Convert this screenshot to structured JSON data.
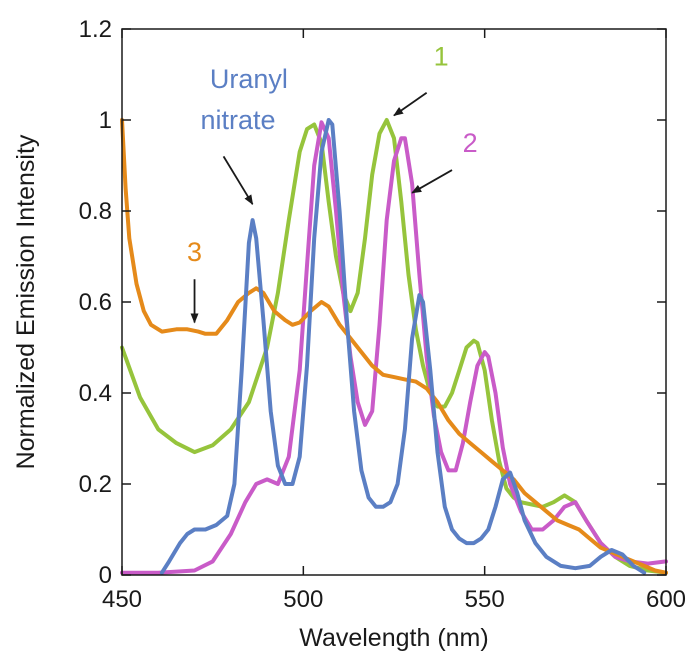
{
  "chart_data": {
    "type": "line",
    "title": "",
    "xlabel": "Wavelength (nm)",
    "ylabel": "Normalized Emission Intensity",
    "xlim": [
      450,
      600
    ],
    "ylim": [
      0,
      1.2
    ],
    "x_ticks": [
      450,
      500,
      550,
      600
    ],
    "y_ticks": [
      0,
      0.2,
      0.4,
      0.6,
      0.8,
      1,
      1.2
    ],
    "x_tick_labels": [
      "450",
      "500",
      "550",
      "600"
    ],
    "y_tick_labels": [
      "0",
      "0.2",
      "0.4",
      "0.6",
      "0.8",
      "1",
      "1.2"
    ],
    "grid": false,
    "legend": "none",
    "series": [
      {
        "name": "1",
        "color": "#96c43c",
        "points": [
          [
            450,
            0.5
          ],
          [
            455,
            0.39
          ],
          [
            460,
            0.32
          ],
          [
            465,
            0.29
          ],
          [
            470,
            0.27
          ],
          [
            475,
            0.285
          ],
          [
            480,
            0.32
          ],
          [
            485,
            0.38
          ],
          [
            490,
            0.5
          ],
          [
            493,
            0.62
          ],
          [
            496,
            0.78
          ],
          [
            499,
            0.93
          ],
          [
            501,
            0.98
          ],
          [
            503,
            0.99
          ],
          [
            505,
            0.95
          ],
          [
            507,
            0.82
          ],
          [
            509,
            0.7
          ],
          [
            511,
            0.62
          ],
          [
            513,
            0.58
          ],
          [
            515,
            0.62
          ],
          [
            517,
            0.74
          ],
          [
            519,
            0.88
          ],
          [
            521,
            0.97
          ],
          [
            523,
            1.0
          ],
          [
            525,
            0.96
          ],
          [
            527,
            0.82
          ],
          [
            529,
            0.66
          ],
          [
            531,
            0.54
          ],
          [
            533,
            0.46
          ],
          [
            535,
            0.4
          ],
          [
            537,
            0.37
          ],
          [
            539,
            0.37
          ],
          [
            541,
            0.4
          ],
          [
            543,
            0.45
          ],
          [
            545,
            0.5
          ],
          [
            547,
            0.515
          ],
          [
            548,
            0.51
          ],
          [
            550,
            0.45
          ],
          [
            552,
            0.34
          ],
          [
            554,
            0.25
          ],
          [
            556,
            0.19
          ],
          [
            558,
            0.17
          ],
          [
            560,
            0.16
          ],
          [
            563,
            0.155
          ],
          [
            566,
            0.15
          ],
          [
            569,
            0.16
          ],
          [
            572,
            0.175
          ],
          [
            575,
            0.16
          ],
          [
            578,
            0.12
          ],
          [
            582,
            0.07
          ],
          [
            586,
            0.04
          ],
          [
            590,
            0.02
          ],
          [
            595,
            0.01
          ],
          [
            600,
            0.005
          ]
        ]
      },
      {
        "name": "2",
        "color": "#c95bc8",
        "points": [
          [
            450,
            0.005
          ],
          [
            460,
            0.005
          ],
          [
            470,
            0.01
          ],
          [
            475,
            0.03
          ],
          [
            480,
            0.09
          ],
          [
            484,
            0.16
          ],
          [
            487,
            0.2
          ],
          [
            490,
            0.21
          ],
          [
            493,
            0.2
          ],
          [
            496,
            0.26
          ],
          [
            499,
            0.45
          ],
          [
            501,
            0.68
          ],
          [
            503,
            0.9
          ],
          [
            505,
            0.995
          ],
          [
            507,
            0.96
          ],
          [
            509,
            0.8
          ],
          [
            511,
            0.62
          ],
          [
            513,
            0.48
          ],
          [
            515,
            0.38
          ],
          [
            517,
            0.33
          ],
          [
            519,
            0.36
          ],
          [
            521,
            0.55
          ],
          [
            523,
            0.78
          ],
          [
            525,
            0.91
          ],
          [
            527,
            0.96
          ],
          [
            528,
            0.96
          ],
          [
            530,
            0.86
          ],
          [
            532,
            0.66
          ],
          [
            534,
            0.48
          ],
          [
            536,
            0.35
          ],
          [
            538,
            0.27
          ],
          [
            540,
            0.23
          ],
          [
            542,
            0.23
          ],
          [
            544,
            0.29
          ],
          [
            546,
            0.38
          ],
          [
            548,
            0.46
          ],
          [
            550,
            0.49
          ],
          [
            551,
            0.48
          ],
          [
            553,
            0.4
          ],
          [
            555,
            0.28
          ],
          [
            557,
            0.2
          ],
          [
            560,
            0.14
          ],
          [
            563,
            0.1
          ],
          [
            566,
            0.1
          ],
          [
            569,
            0.12
          ],
          [
            572,
            0.15
          ],
          [
            575,
            0.16
          ],
          [
            578,
            0.12
          ],
          [
            582,
            0.07
          ],
          [
            586,
            0.04
          ],
          [
            590,
            0.03
          ],
          [
            595,
            0.025
          ],
          [
            600,
            0.03
          ]
        ]
      },
      {
        "name": "3",
        "color": "#e58a1a",
        "points": [
          [
            450,
            1.0
          ],
          [
            451,
            0.85
          ],
          [
            452,
            0.74
          ],
          [
            454,
            0.64
          ],
          [
            456,
            0.58
          ],
          [
            458,
            0.55
          ],
          [
            461,
            0.535
          ],
          [
            465,
            0.54
          ],
          [
            468,
            0.54
          ],
          [
            471,
            0.535
          ],
          [
            473,
            0.53
          ],
          [
            476,
            0.53
          ],
          [
            479,
            0.56
          ],
          [
            482,
            0.6
          ],
          [
            485,
            0.62
          ],
          [
            487,
            0.63
          ],
          [
            489,
            0.62
          ],
          [
            492,
            0.58
          ],
          [
            495,
            0.56
          ],
          [
            497,
            0.55
          ],
          [
            499,
            0.555
          ],
          [
            502,
            0.58
          ],
          [
            505,
            0.6
          ],
          [
            507,
            0.59
          ],
          [
            510,
            0.55
          ],
          [
            513,
            0.52
          ],
          [
            516,
            0.49
          ],
          [
            519,
            0.46
          ],
          [
            522,
            0.44
          ],
          [
            525,
            0.435
          ],
          [
            528,
            0.43
          ],
          [
            531,
            0.425
          ],
          [
            534,
            0.41
          ],
          [
            537,
            0.38
          ],
          [
            540,
            0.34
          ],
          [
            543,
            0.31
          ],
          [
            546,
            0.29
          ],
          [
            549,
            0.27
          ],
          [
            552,
            0.25
          ],
          [
            555,
            0.23
          ],
          [
            558,
            0.21
          ],
          [
            561,
            0.18
          ],
          [
            564,
            0.16
          ],
          [
            567,
            0.14
          ],
          [
            570,
            0.12
          ],
          [
            573,
            0.11
          ],
          [
            576,
            0.1
          ],
          [
            579,
            0.08
          ],
          [
            582,
            0.06
          ],
          [
            585,
            0.05
          ],
          [
            588,
            0.04
          ],
          [
            591,
            0.03
          ],
          [
            594,
            0.02
          ],
          [
            597,
            0.01
          ],
          [
            600,
            0.005
          ]
        ]
      },
      {
        "name": "Uranyl nitrate",
        "color": "#5b7fc4",
        "points": [
          [
            461,
            0.005
          ],
          [
            463,
            0.03
          ],
          [
            466,
            0.07
          ],
          [
            468,
            0.09
          ],
          [
            470,
            0.1
          ],
          [
            473,
            0.1
          ],
          [
            476,
            0.11
          ],
          [
            479,
            0.13
          ],
          [
            481,
            0.2
          ],
          [
            483,
            0.45
          ],
          [
            485,
            0.73
          ],
          [
            486,
            0.78
          ],
          [
            487,
            0.74
          ],
          [
            489,
            0.56
          ],
          [
            491,
            0.36
          ],
          [
            493,
            0.24
          ],
          [
            495,
            0.2
          ],
          [
            497,
            0.2
          ],
          [
            499,
            0.26
          ],
          [
            501,
            0.46
          ],
          [
            503,
            0.74
          ],
          [
            505,
            0.93
          ],
          [
            507,
            1.0
          ],
          [
            508,
            0.99
          ],
          [
            510,
            0.8
          ],
          [
            512,
            0.56
          ],
          [
            514,
            0.36
          ],
          [
            516,
            0.23
          ],
          [
            518,
            0.17
          ],
          [
            520,
            0.15
          ],
          [
            522,
            0.15
          ],
          [
            524,
            0.16
          ],
          [
            526,
            0.2
          ],
          [
            528,
            0.32
          ],
          [
            530,
            0.52
          ],
          [
            532,
            0.615
          ],
          [
            533,
            0.6
          ],
          [
            535,
            0.45
          ],
          [
            537,
            0.27
          ],
          [
            539,
            0.15
          ],
          [
            541,
            0.1
          ],
          [
            543,
            0.08
          ],
          [
            545,
            0.07
          ],
          [
            547,
            0.07
          ],
          [
            549,
            0.08
          ],
          [
            551,
            0.1
          ],
          [
            553,
            0.15
          ],
          [
            555,
            0.21
          ],
          [
            557,
            0.225
          ],
          [
            559,
            0.18
          ],
          [
            561,
            0.12
          ],
          [
            564,
            0.07
          ],
          [
            567,
            0.04
          ],
          [
            571,
            0.02
          ],
          [
            575,
            0.015
          ],
          [
            579,
            0.02
          ],
          [
            582,
            0.04
          ],
          [
            585,
            0.055
          ],
          [
            588,
            0.045
          ],
          [
            591,
            0.02
          ],
          [
            594,
            0.005
          ]
        ]
      }
    ],
    "annotations": [
      {
        "text": "1",
        "color": "#96c43c",
        "tx": 538,
        "ty": 1.12,
        "arrow_from": [
          534,
          1.06
        ],
        "arrow_to": [
          525,
          1.01
        ]
      },
      {
        "text": "2",
        "color": "#c95bc8",
        "tx": 546,
        "ty": 0.93,
        "arrow_from": [
          541,
          0.89
        ],
        "arrow_to": [
          530,
          0.84
        ]
      },
      {
        "text": "3",
        "color": "#e58a1a",
        "tx": 470,
        "ty": 0.69,
        "arrow_from": [
          470,
          0.65
        ],
        "arrow_to": [
          470,
          0.555
        ]
      },
      {
        "text": "Uranyl",
        "color": "#5b7fc4",
        "tx": 485,
        "ty": 1.07,
        "arrow_from": null,
        "arrow_to": null
      },
      {
        "text": "nitrate",
        "color": "#5b7fc4",
        "tx": 482,
        "ty": 0.98,
        "arrow_from": [
          478,
          0.92
        ],
        "arrow_to": [
          486,
          0.815
        ]
      }
    ]
  }
}
